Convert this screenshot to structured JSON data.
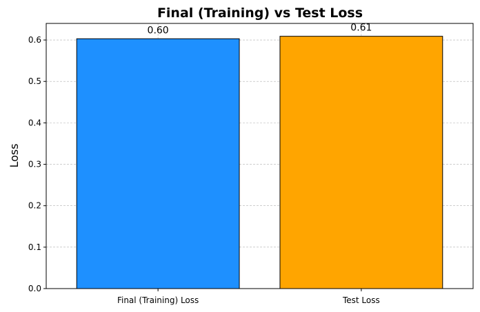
{
  "chart_data": {
    "type": "bar",
    "title": "Final (Training) vs Test Loss",
    "xlabel": "",
    "ylabel": "Loss",
    "categories": [
      "Final (Training) Loss",
      "Test Loss"
    ],
    "values": [
      0.603,
      0.609
    ],
    "value_labels": [
      "0.60",
      "0.61"
    ],
    "colors": [
      "#1e90ff",
      "#ffa500"
    ],
    "edge_color": "#000000",
    "ylim": [
      0,
      0.64
    ],
    "yticks": [
      0.0,
      0.1,
      0.2,
      0.3,
      0.4,
      0.5,
      0.6
    ],
    "ytick_labels": [
      "0.0",
      "0.1",
      "0.2",
      "0.3",
      "0.4",
      "0.5",
      "0.6"
    ],
    "grid": true,
    "grid_style": "dashed",
    "grid_color": "#b0b0b0"
  }
}
